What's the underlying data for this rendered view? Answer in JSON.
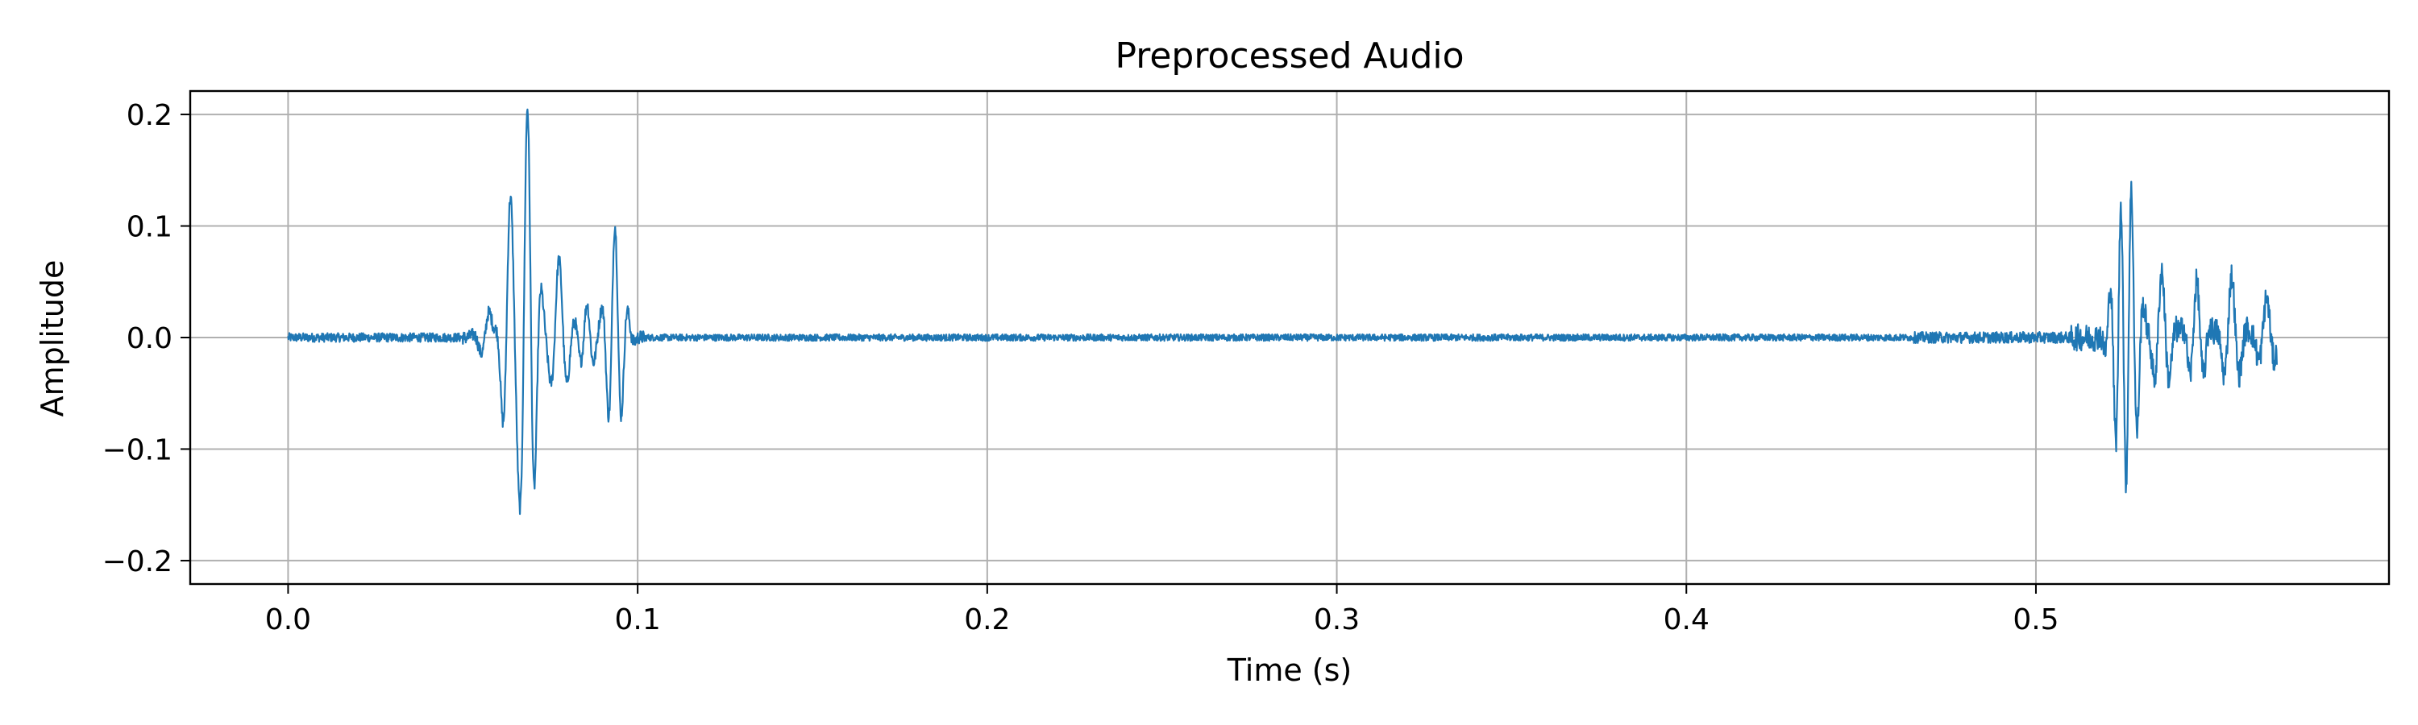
{
  "chart_data": {
    "type": "line",
    "title": "Preprocessed Audio",
    "xlabel": "Time (s)",
    "ylabel": "Amplitude",
    "xlim": [
      -0.028,
      0.601
    ],
    "ylim": [
      -0.221,
      0.221
    ],
    "x_ticks": [
      0.0,
      0.1,
      0.2,
      0.3,
      0.4,
      0.5
    ],
    "x_tick_labels": [
      "0.0",
      "0.1",
      "0.2",
      "0.3",
      "0.4",
      "0.5"
    ],
    "y_ticks": [
      0.2,
      0.1,
      0.0,
      -0.1,
      -0.2
    ],
    "y_tick_labels": [
      "0.2",
      "0.1",
      "0.0",
      "−0.1",
      "−0.2"
    ],
    "grid": true,
    "series": [
      {
        "color": "#1f77b4",
        "segments": [
          {
            "x_start": 0.0,
            "x_end": 0.05,
            "noise": 0.004
          },
          {
            "x_start": 0.05,
            "x_end": 0.102,
            "noise": 0.006,
            "oscillations": [
              {
                "t": 0.0575,
                "a": 0.025,
                "f": 200
              },
              {
                "t": 0.0635,
                "a": 0.12,
                "f": 230
              },
              {
                "t": 0.0685,
                "a": 0.2,
                "f": 240
              },
              {
                "t": 0.0775,
                "a": 0.07,
                "f": 200
              },
              {
                "t": 0.0855,
                "a": 0.03,
                "f": 260
              },
              {
                "t": 0.0935,
                "a": 0.1,
                "f": 260
              }
            ]
          },
          {
            "x_start": 0.102,
            "x_end": 0.465,
            "noise": 0.003
          },
          {
            "x_start": 0.465,
            "x_end": 0.51,
            "noise": 0.005
          },
          {
            "x_start": 0.51,
            "x_end": 0.569,
            "noise": 0.012,
            "oscillations": [
              {
                "t": 0.5245,
                "a": 0.145,
                "f": 300
              },
              {
                "t": 0.527,
                "a": 0.11,
                "f": 260
              },
              {
                "t": 0.536,
                "a": 0.06,
                "f": 220
              },
              {
                "t": 0.546,
                "a": 0.05,
                "f": 240
              },
              {
                "t": 0.556,
                "a": 0.055,
                "f": 210
              },
              {
                "t": 0.566,
                "a": 0.035,
                "f": 200
              }
            ]
          }
        ]
      }
    ]
  }
}
